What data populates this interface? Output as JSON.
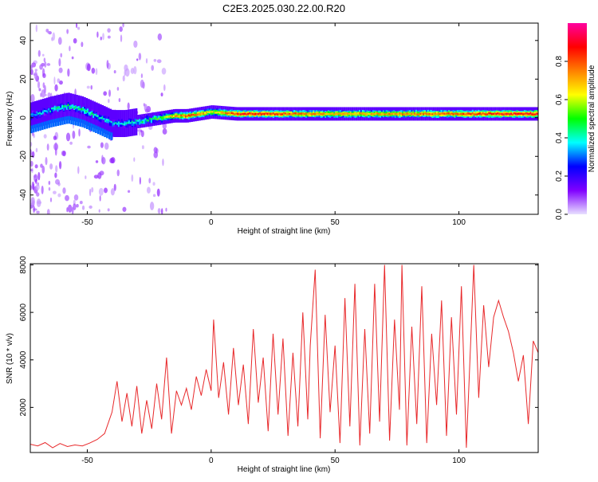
{
  "title": "C2E3.2025.030.22.00.R20",
  "chart_data": [
    {
      "type": "heatmap",
      "xlabel": "Height of straight line (km)",
      "ylabel": "Frequency (Hz)",
      "xlim": [
        -73,
        132
      ],
      "ylim": [
        -50,
        49
      ],
      "x_ticks": [
        -50,
        0,
        50,
        100
      ],
      "y_ticks": [
        -40,
        -20,
        0,
        20,
        40
      ],
      "grid": false,
      "colorbar": {
        "label": "Normalized spectral amplitude",
        "range": [
          0,
          1
        ],
        "ticks": [
          0.0,
          0.2,
          0.4,
          0.6,
          0.8
        ],
        "tick_labels": [
          "0.0",
          "0.2",
          "0.4",
          "0.6",
          "0.8"
        ],
        "colormap": [
          "#e8e0ff",
          "#8000ff",
          "#0000ff",
          "#00ffff",
          "#00ff00",
          "#ffff00",
          "#ff8000",
          "#ff0000",
          "#ff00a0"
        ]
      },
      "ridge": {
        "x": [
          -73,
          -65,
          -58,
          -52,
          -45,
          -40,
          -35,
          -30,
          -25,
          -20,
          -15,
          -10,
          -5,
          0,
          10,
          20,
          40,
          60,
          80,
          100,
          132
        ],
        "y": [
          1,
          4,
          6,
          4,
          0,
          -3,
          -3,
          -2,
          -1,
          0,
          1,
          1,
          2,
          3,
          2,
          2,
          2,
          2,
          2,
          2,
          2
        ],
        "amplitude": [
          0.35,
          0.4,
          0.45,
          0.45,
          0.4,
          0.38,
          0.4,
          0.42,
          0.45,
          0.55,
          0.7,
          0.8,
          0.75,
          0.6,
          0.85,
          0.85,
          0.75,
          0.7,
          0.75,
          0.8,
          0.9
        ]
      }
    },
    {
      "type": "line",
      "xlabel": "Height of straight line (km)",
      "ylabel": "SNR (10 * v/v)",
      "xlim": [
        -73,
        132
      ],
      "ylim": [
        100,
        8050
      ],
      "x_ticks": [
        -50,
        0,
        50,
        100
      ],
      "y_ticks": [
        2000,
        4000,
        6000,
        8000
      ],
      "grid": false,
      "series": [
        {
          "color": "#e8282a",
          "x": [
            -73,
            -70,
            -67,
            -64,
            -61,
            -58,
            -55,
            -52,
            -49,
            -46,
            -43,
            -40,
            -38,
            -36,
            -34,
            -32,
            -30,
            -28,
            -26,
            -24,
            -22,
            -20,
            -18,
            -16,
            -14,
            -12,
            -10,
            -8,
            -6,
            -4,
            -2,
            0,
            1,
            3,
            5,
            7,
            9,
            11,
            13,
            15,
            17,
            19,
            21,
            23,
            25,
            27,
            29,
            31,
            33,
            35,
            37,
            39,
            40,
            42,
            44,
            46,
            48,
            50,
            52,
            54,
            56,
            58,
            60,
            62,
            64,
            66,
            68,
            70,
            72,
            74,
            76,
            77,
            79,
            81,
            83,
            85,
            87,
            89,
            91,
            93,
            95,
            97,
            99,
            101,
            103,
            105,
            106,
            108,
            110,
            112,
            114,
            116,
            118,
            120,
            122,
            124,
            126,
            128,
            130,
            132
          ],
          "y": [
            450,
            380,
            520,
            300,
            480,
            350,
            420,
            380,
            500,
            650,
            900,
            1800,
            3100,
            1400,
            2600,
            1200,
            2900,
            900,
            2300,
            1100,
            3000,
            1500,
            4100,
            900,
            2700,
            2100,
            2800,
            1900,
            3300,
            2500,
            3600,
            2700,
            5700,
            2400,
            3900,
            1700,
            4500,
            2100,
            3800,
            1300,
            5300,
            2200,
            4100,
            1000,
            5100,
            1700,
            4900,
            800,
            4300,
            1200,
            6000,
            1500,
            4600,
            7800,
            700,
            5900,
            1800,
            4600,
            500,
            6600,
            1200,
            7200,
            400,
            5300,
            900,
            7200,
            1400,
            8000,
            600,
            5700,
            1900,
            8000,
            400,
            5400,
            1300,
            7100,
            500,
            5100,
            2100,
            6500,
            800,
            5800,
            1700,
            7100,
            300,
            5400,
            8000,
            2400,
            6300,
            3700,
            5800,
            6500,
            5800,
            5200,
            4300,
            3100,
            4200,
            1300,
            4800,
            4300
          ]
        }
      ]
    }
  ]
}
